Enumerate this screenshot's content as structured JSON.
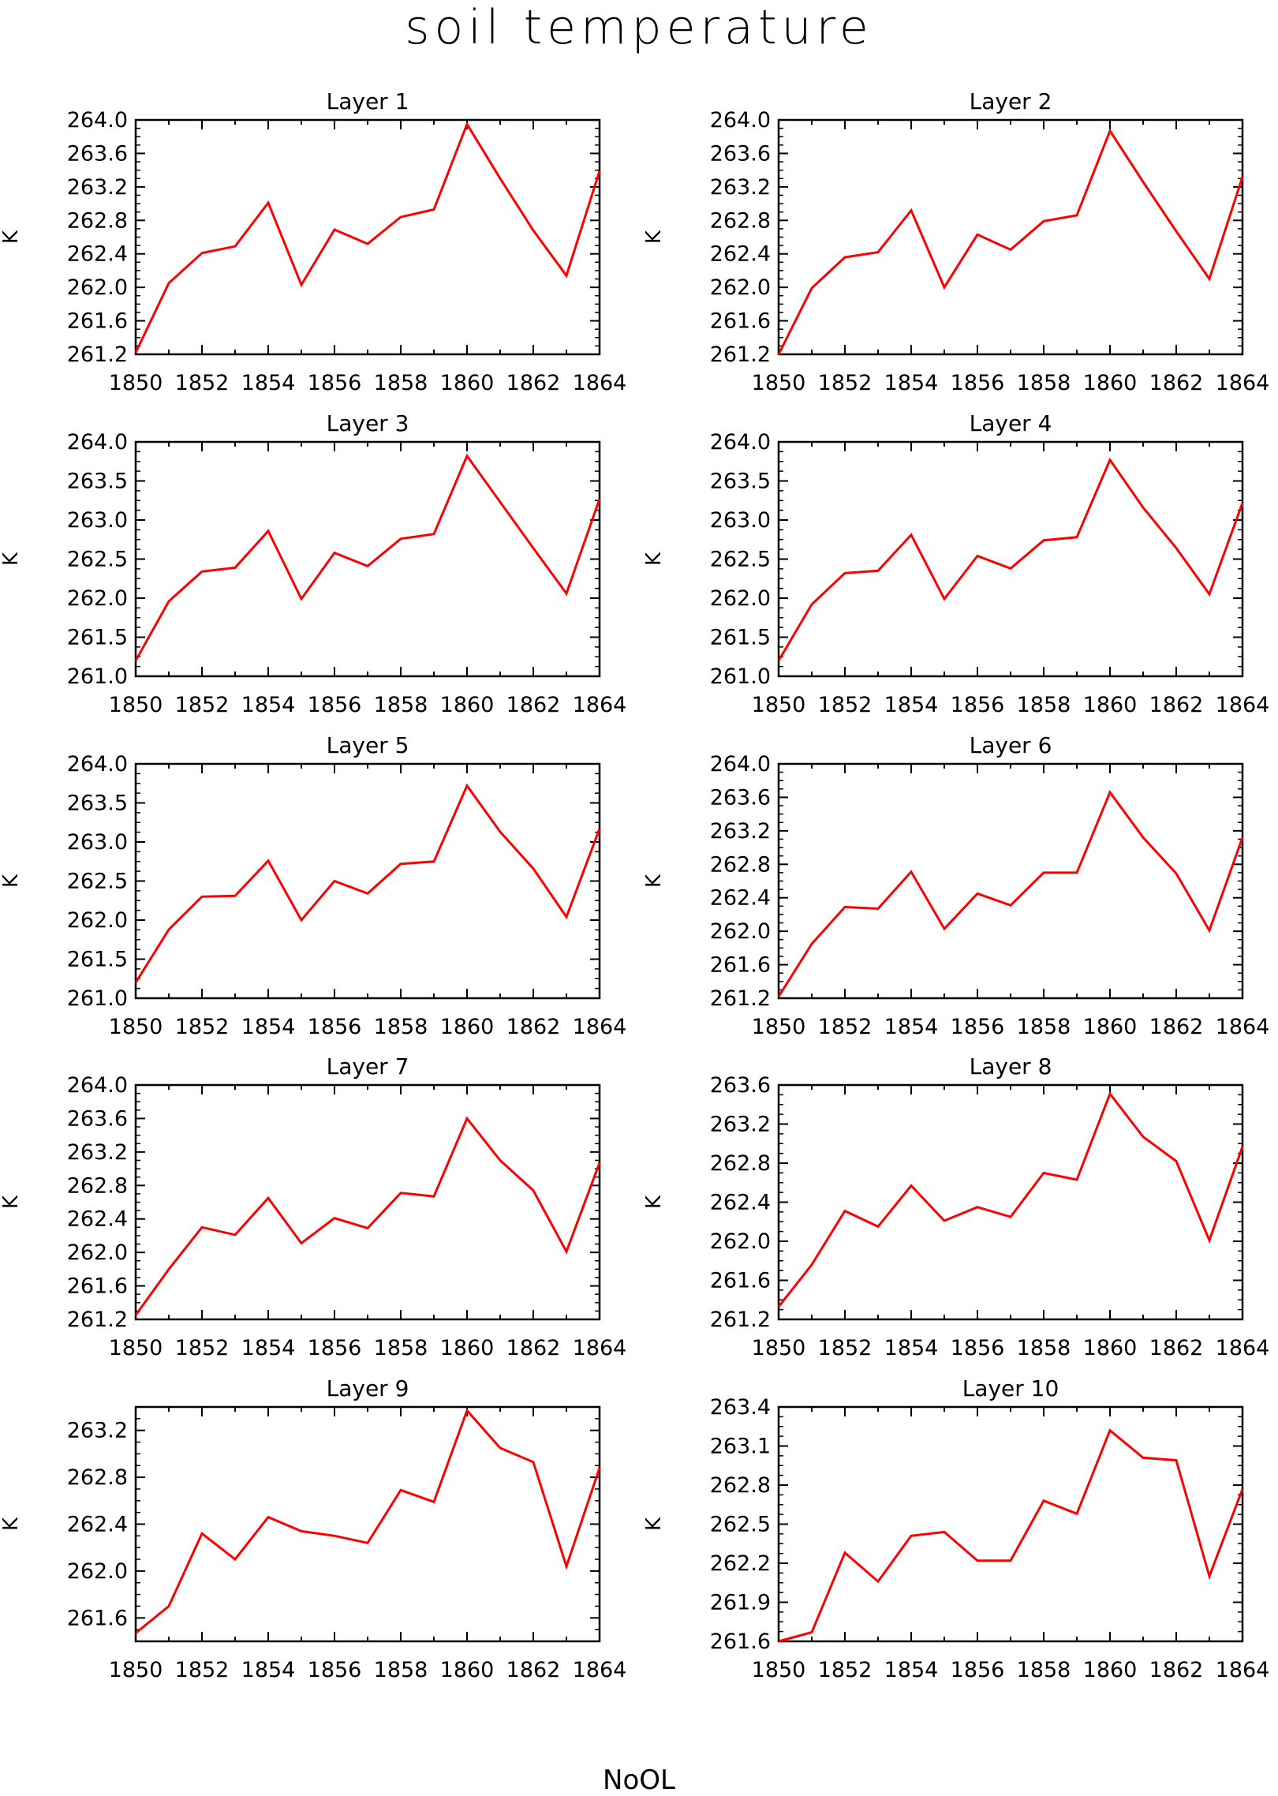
{
  "title": "soil temperature",
  "footer": "NoOL",
  "colors": {
    "line": "#ff0000",
    "axis": "#000000",
    "background": "#ffffff"
  },
  "chart_data": [
    {
      "type": "line",
      "title": "Layer 1",
      "ylabel": "K",
      "ylim": [
        261.2,
        264.0
      ],
      "yticks": [
        "264.0",
        "263.6",
        "263.2",
        "262.8",
        "262.4",
        "262.0",
        "261.6",
        "261.2"
      ],
      "xticks": [
        "1850",
        "1852",
        "1854",
        "1856",
        "1858",
        "1860",
        "1862",
        "1864"
      ],
      "x": [
        1850,
        1851,
        1852,
        1853,
        1854,
        1855,
        1856,
        1857,
        1858,
        1859,
        1860,
        1861,
        1862,
        1863,
        1864
      ],
      "series": [
        {
          "values": [
            261.22,
            262.05,
            262.41,
            262.49,
            263.01,
            262.03,
            262.69,
            262.52,
            262.84,
            262.93,
            263.95,
            263.3,
            262.68,
            262.14,
            263.39
          ]
        }
      ]
    },
    {
      "type": "line",
      "title": "Layer 2",
      "ylabel": "K",
      "ylim": [
        261.2,
        264.0
      ],
      "yticks": [
        "264.0",
        "263.6",
        "263.2",
        "262.8",
        "262.4",
        "262.0",
        "261.6",
        "261.2"
      ],
      "xticks": [
        "1850",
        "1852",
        "1854",
        "1856",
        "1858",
        "1860",
        "1862",
        "1864"
      ],
      "x": [
        1850,
        1851,
        1852,
        1853,
        1854,
        1855,
        1856,
        1857,
        1858,
        1859,
        1860,
        1861,
        1862,
        1863,
        1864
      ],
      "series": [
        {
          "values": [
            261.2,
            261.99,
            262.36,
            262.42,
            262.92,
            262.0,
            262.63,
            262.45,
            262.79,
            262.86,
            263.87,
            263.26,
            262.67,
            262.1,
            263.32
          ]
        }
      ]
    },
    {
      "type": "line",
      "title": "Layer 3",
      "ylabel": "K",
      "ylim": [
        261.0,
        264.0
      ],
      "yticks": [
        "264.0",
        "263.5",
        "263.0",
        "262.5",
        "262.0",
        "261.5",
        "261.0"
      ],
      "xticks": [
        "1850",
        "1852",
        "1854",
        "1856",
        "1858",
        "1860",
        "1862",
        "1864"
      ],
      "x": [
        1850,
        1851,
        1852,
        1853,
        1854,
        1855,
        1856,
        1857,
        1858,
        1859,
        1860,
        1861,
        1862,
        1863,
        1864
      ],
      "series": [
        {
          "values": [
            261.2,
            261.96,
            262.34,
            262.39,
            262.86,
            261.99,
            262.58,
            262.41,
            262.76,
            262.82,
            263.82,
            263.23,
            262.64,
            262.06,
            263.27
          ]
        }
      ]
    },
    {
      "type": "line",
      "title": "Layer 4",
      "ylabel": "K",
      "ylim": [
        261.0,
        264.0
      ],
      "yticks": [
        "264.0",
        "263.5",
        "263.0",
        "262.5",
        "262.0",
        "261.5",
        "261.0"
      ],
      "xticks": [
        "1850",
        "1852",
        "1854",
        "1856",
        "1858",
        "1860",
        "1862",
        "1864"
      ],
      "x": [
        1850,
        1851,
        1852,
        1853,
        1854,
        1855,
        1856,
        1857,
        1858,
        1859,
        1860,
        1861,
        1862,
        1863,
        1864
      ],
      "series": [
        {
          "values": [
            261.2,
            261.92,
            262.32,
            262.35,
            262.81,
            261.99,
            262.54,
            262.38,
            262.74,
            262.78,
            263.77,
            263.16,
            262.64,
            262.05,
            263.22
          ]
        }
      ]
    },
    {
      "type": "line",
      "title": "Layer 5",
      "ylabel": "K",
      "ylim": [
        261.0,
        264.0
      ],
      "yticks": [
        "264.0",
        "263.5",
        "263.0",
        "262.5",
        "262.0",
        "261.5",
        "261.0"
      ],
      "xticks": [
        "1850",
        "1852",
        "1854",
        "1856",
        "1858",
        "1860",
        "1862",
        "1864"
      ],
      "x": [
        1850,
        1851,
        1852,
        1853,
        1854,
        1855,
        1856,
        1857,
        1858,
        1859,
        1860,
        1861,
        1862,
        1863,
        1864
      ],
      "series": [
        {
          "values": [
            261.2,
            261.88,
            262.3,
            262.31,
            262.76,
            262.0,
            262.5,
            262.34,
            262.72,
            262.75,
            263.72,
            263.13,
            262.66,
            262.04,
            263.17
          ]
        }
      ]
    },
    {
      "type": "line",
      "title": "Layer 6",
      "ylabel": "K",
      "ylim": [
        261.2,
        264.0
      ],
      "yticks": [
        "264.0",
        "263.6",
        "263.2",
        "262.8",
        "262.4",
        "262.0",
        "261.6",
        "261.2"
      ],
      "xticks": [
        "1850",
        "1852",
        "1854",
        "1856",
        "1858",
        "1860",
        "1862",
        "1864"
      ],
      "x": [
        1850,
        1851,
        1852,
        1853,
        1854,
        1855,
        1856,
        1857,
        1858,
        1859,
        1860,
        1861,
        1862,
        1863,
        1864
      ],
      "series": [
        {
          "values": [
            261.22,
            261.85,
            262.29,
            262.27,
            262.71,
            262.03,
            262.45,
            262.31,
            262.7,
            262.7,
            263.66,
            263.12,
            262.69,
            262.01,
            263.12
          ]
        }
      ]
    },
    {
      "type": "line",
      "title": "Layer 7",
      "ylabel": "K",
      "ylim": [
        261.2,
        264.0
      ],
      "yticks": [
        "264.0",
        "263.6",
        "263.2",
        "262.8",
        "262.4",
        "262.0",
        "261.6",
        "261.2"
      ],
      "xticks": [
        "1850",
        "1852",
        "1854",
        "1856",
        "1858",
        "1860",
        "1862",
        "1864"
      ],
      "x": [
        1850,
        1851,
        1852,
        1853,
        1854,
        1855,
        1856,
        1857,
        1858,
        1859,
        1860,
        1861,
        1862,
        1863,
        1864
      ],
      "series": [
        {
          "values": [
            261.25,
            261.8,
            262.3,
            262.21,
            262.65,
            262.11,
            262.41,
            262.29,
            262.71,
            262.67,
            263.6,
            263.1,
            262.74,
            262.01,
            263.07
          ]
        }
      ]
    },
    {
      "type": "line",
      "title": "Layer 8",
      "ylabel": "K",
      "ylim": [
        261.2,
        263.6
      ],
      "yticks": [
        "263.6",
        "263.2",
        "262.8",
        "262.4",
        "262.0",
        "261.6",
        "261.2"
      ],
      "xticks": [
        "1850",
        "1852",
        "1854",
        "1856",
        "1858",
        "1860",
        "1862",
        "1864"
      ],
      "x": [
        1850,
        1851,
        1852,
        1853,
        1854,
        1855,
        1856,
        1857,
        1858,
        1859,
        1860,
        1861,
        1862,
        1863,
        1864
      ],
      "series": [
        {
          "values": [
            261.33,
            261.76,
            262.31,
            262.15,
            262.57,
            262.21,
            262.35,
            262.25,
            262.7,
            262.63,
            263.51,
            263.07,
            262.82,
            262.01,
            262.97
          ]
        }
      ]
    },
    {
      "type": "line",
      "title": "Layer 9",
      "ylabel": "K",
      "ylim": [
        261.4,
        263.4
      ],
      "yticks": [
        "263.2",
        "262.8",
        "262.4",
        "262.0",
        "261.6"
      ],
      "xticks": [
        "1850",
        "1852",
        "1854",
        "1856",
        "1858",
        "1860",
        "1862",
        "1864"
      ],
      "x": [
        1850,
        1851,
        1852,
        1853,
        1854,
        1855,
        1856,
        1857,
        1858,
        1859,
        1860,
        1861,
        1862,
        1863,
        1864
      ],
      "series": [
        {
          "values": [
            261.47,
            261.7,
            262.32,
            262.1,
            262.46,
            262.34,
            262.3,
            262.24,
            262.69,
            262.59,
            263.37,
            263.05,
            262.93,
            262.04,
            262.88
          ]
        }
      ]
    },
    {
      "type": "line",
      "title": "Layer 10",
      "ylabel": "K",
      "ylim": [
        261.6,
        263.4
      ],
      "yticks": [
        "263.4",
        "263.1",
        "262.8",
        "262.5",
        "262.2",
        "261.9",
        "261.6"
      ],
      "xticks": [
        "1850",
        "1852",
        "1854",
        "1856",
        "1858",
        "1860",
        "1862",
        "1864"
      ],
      "x": [
        1850,
        1851,
        1852,
        1853,
        1854,
        1855,
        1856,
        1857,
        1858,
        1859,
        1860,
        1861,
        1862,
        1863,
        1864
      ],
      "series": [
        {
          "values": [
            261.6,
            261.67,
            262.28,
            262.06,
            262.41,
            262.44,
            262.22,
            262.22,
            262.68,
            262.58,
            263.22,
            263.01,
            262.99,
            262.1,
            262.77
          ]
        }
      ]
    }
  ]
}
